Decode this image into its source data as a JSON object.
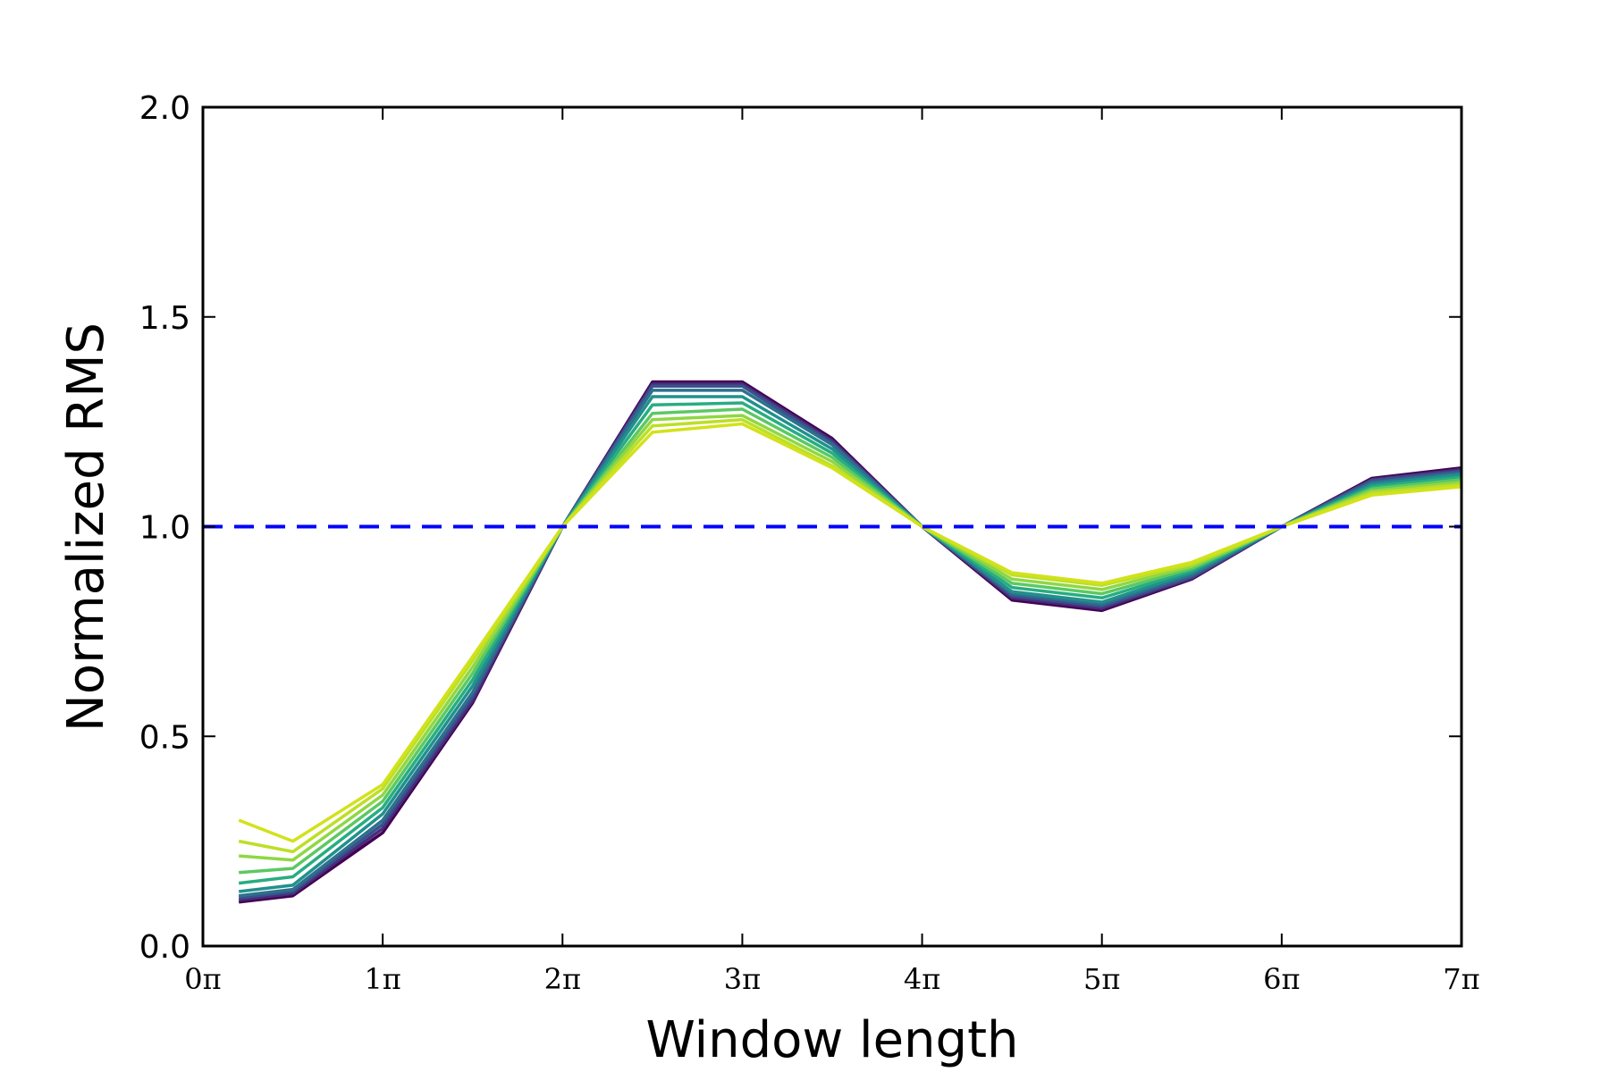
{
  "chart_data": {
    "type": "line",
    "title": "",
    "xlabel": "Window length",
    "ylabel": "Normalized RMS",
    "xlim": [
      0,
      7
    ],
    "ylim": [
      0.0,
      2.0
    ],
    "x_unit": "π",
    "xticks": [
      0,
      1,
      2,
      3,
      4,
      5,
      6,
      7
    ],
    "xtick_labels": [
      "0π",
      "1π",
      "2π",
      "3π",
      "4π",
      "5π",
      "6π",
      "7π"
    ],
    "yticks": [
      0.0,
      0.5,
      1.0,
      1.5,
      2.0
    ],
    "ytick_labels": [
      "0.0",
      "0.5",
      "1.0",
      "1.5",
      "2.0"
    ],
    "grid": false,
    "legend": "none",
    "x": [
      0.2,
      0.5,
      1.0,
      1.5,
      2.0,
      2.5,
      3.0,
      3.5,
      4.0,
      4.5,
      5.0,
      5.5,
      6.0,
      6.5,
      7.0
    ],
    "series": [
      {
        "color": "#440154",
        "values": [
          0.105,
          0.12,
          0.27,
          0.58,
          1.0,
          1.345,
          1.345,
          1.21,
          1.0,
          0.825,
          0.8,
          0.875,
          1.0,
          1.115,
          1.14
        ]
      },
      {
        "color": "#472c7a",
        "values": [
          0.11,
          0.125,
          0.28,
          0.585,
          1.0,
          1.34,
          1.34,
          1.205,
          1.0,
          0.83,
          0.805,
          0.877,
          1.0,
          1.112,
          1.136
        ]
      },
      {
        "color": "#3b518b",
        "values": [
          0.115,
          0.13,
          0.29,
          0.595,
          1.0,
          1.335,
          1.335,
          1.2,
          1.0,
          0.835,
          0.81,
          0.88,
          1.0,
          1.11,
          1.132
        ]
      },
      {
        "color": "#2c718e",
        "values": [
          0.12,
          0.135,
          0.3,
          0.605,
          1.0,
          1.325,
          1.325,
          1.195,
          1.0,
          0.84,
          0.815,
          0.885,
          1.0,
          1.105,
          1.128
        ]
      },
      {
        "color": "#21908d",
        "values": [
          0.13,
          0.145,
          0.315,
          0.62,
          1.0,
          1.31,
          1.31,
          1.185,
          1.0,
          0.845,
          0.82,
          0.89,
          1.0,
          1.1,
          1.124
        ]
      },
      {
        "color": "#27ad81",
        "values": [
          0.15,
          0.165,
          0.33,
          0.635,
          1.0,
          1.29,
          1.295,
          1.175,
          1.0,
          0.855,
          0.83,
          0.895,
          1.0,
          1.095,
          1.118
        ]
      },
      {
        "color": "#5cc863",
        "values": [
          0.175,
          0.185,
          0.345,
          0.65,
          1.0,
          1.27,
          1.28,
          1.165,
          1.0,
          0.865,
          0.84,
          0.9,
          1.0,
          1.09,
          1.112
        ]
      },
      {
        "color": "#8fd744",
        "values": [
          0.215,
          0.205,
          0.36,
          0.665,
          1.0,
          1.255,
          1.265,
          1.155,
          1.0,
          0.875,
          0.85,
          0.905,
          1.0,
          1.085,
          1.106
        ]
      },
      {
        "color": "#bddf26",
        "values": [
          0.25,
          0.225,
          0.375,
          0.68,
          1.0,
          1.24,
          1.255,
          1.145,
          1.0,
          0.885,
          0.86,
          0.91,
          1.0,
          1.08,
          1.1
        ]
      },
      {
        "color": "#d2e21b",
        "values": [
          0.3,
          0.25,
          0.385,
          0.69,
          1.0,
          1.225,
          1.245,
          1.14,
          1.0,
          0.89,
          0.865,
          0.915,
          1.0,
          1.075,
          1.095
        ]
      }
    ],
    "reference_line": {
      "y": 1.0,
      "style": "dashed",
      "color": "#0000ff"
    }
  }
}
